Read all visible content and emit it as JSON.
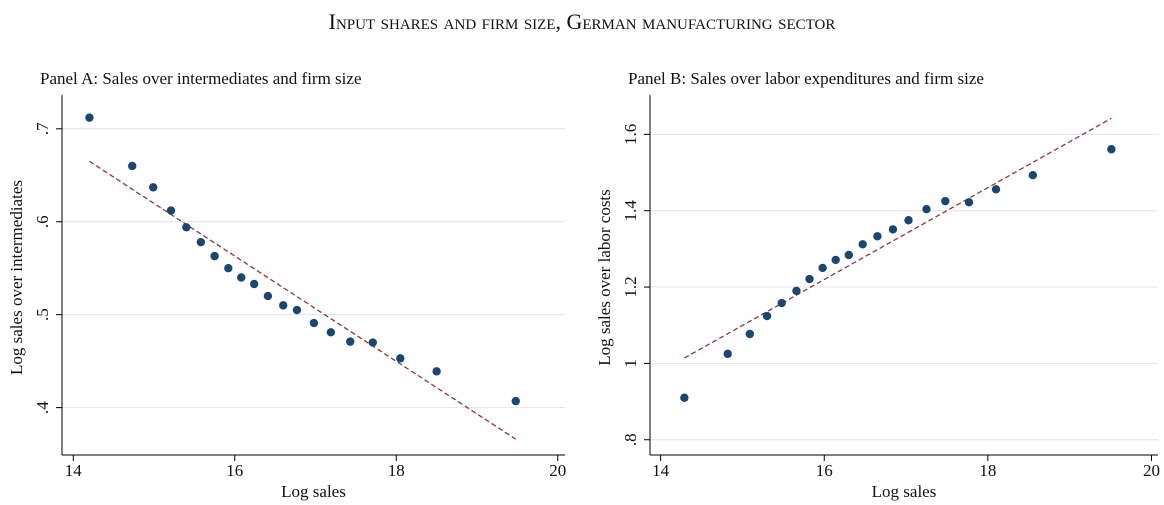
{
  "title": "Input shares and firm size, German manufacturing sector",
  "chart_data": [
    {
      "type": "scatter",
      "title": "Panel A: Sales over intermediates and firm size",
      "x_label": "Log sales",
      "y_label": "Log sales over intermediates",
      "x": [
        14.2,
        14.73,
        14.99,
        15.21,
        15.4,
        15.58,
        15.75,
        15.92,
        16.08,
        16.24,
        16.41,
        16.6,
        16.77,
        16.98,
        17.19,
        17.43,
        17.71,
        18.05,
        18.5,
        19.48
      ],
      "values": [
        0.712,
        0.66,
        0.637,
        0.612,
        0.594,
        0.578,
        0.563,
        0.55,
        0.54,
        0.533,
        0.52,
        0.51,
        0.505,
        0.491,
        0.481,
        0.471,
        0.47,
        0.453,
        0.439,
        0.407
      ],
      "color": "#1a476f",
      "fit": {
        "x": [
          14.2,
          19.48
        ],
        "values": [
          0.665,
          0.366
        ],
        "color": "#90353b"
      },
      "xlim": [
        13.86,
        20.09
      ],
      "ylim": [
        0.349,
        0.731
      ],
      "xticks": [
        14,
        16,
        18,
        20
      ],
      "yticks": [
        {
          "value": 0.4,
          "label": ".4"
        },
        {
          "value": 0.5,
          "label": ".5"
        },
        {
          "value": 0.6,
          "label": ".6"
        },
        {
          "value": 0.7,
          "label": ".7"
        }
      ],
      "grid": true
    },
    {
      "type": "scatter",
      "title": "Panel B: Sales over labor expenditures and firm size",
      "x_label": "Log sales",
      "y_label": "Log sales over labor costs",
      "x": [
        14.29,
        14.82,
        15.09,
        15.3,
        15.48,
        15.66,
        15.82,
        15.98,
        16.14,
        16.3,
        16.47,
        16.65,
        16.84,
        17.03,
        17.25,
        17.48,
        17.77,
        18.1,
        18.55,
        19.51
      ],
      "values": [
        0.91,
        1.025,
        1.077,
        1.124,
        1.158,
        1.19,
        1.221,
        1.25,
        1.271,
        1.284,
        1.312,
        1.333,
        1.351,
        1.375,
        1.404,
        1.425,
        1.422,
        1.456,
        1.493,
        1.561
      ],
      "color": "#1a476f",
      "fit": {
        "x": [
          14.29,
          19.51
        ],
        "values": [
          1.014,
          1.642
        ],
        "color": "#90353b"
      },
      "xlim": [
        13.87,
        20.08
      ],
      "ylim": [
        0.76,
        1.69
      ],
      "xticks": [
        14,
        16,
        18,
        20
      ],
      "yticks": [
        {
          "value": 0.8,
          "label": ".8"
        },
        1,
        1.2,
        1.4,
        1.6
      ],
      "grid": true
    }
  ]
}
